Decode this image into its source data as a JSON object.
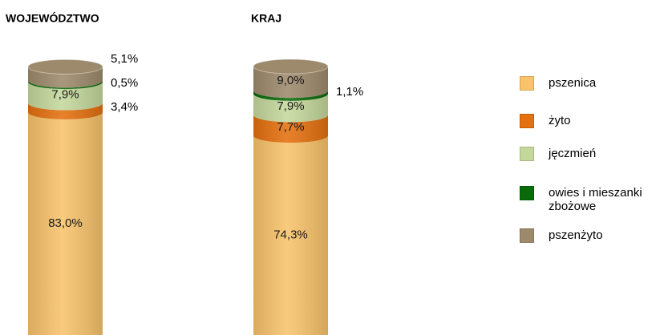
{
  "chart_data": {
    "type": "bar",
    "stacked": true,
    "categories": [
      "WOJEWÓDZTWO",
      "KRAJ"
    ],
    "series": [
      {
        "name": "pszenica",
        "color": "#f8c36b",
        "values": [
          83.0,
          74.3
        ],
        "value_labels": [
          "83,0%",
          "74,3%"
        ]
      },
      {
        "name": "żyto",
        "color": "#e4700f",
        "values": [
          3.4,
          7.7
        ],
        "value_labels": [
          "3,4%",
          "7,7%"
        ]
      },
      {
        "name": "jęczmień",
        "color": "#c4d89c",
        "values": [
          7.9,
          7.9
        ],
        "value_labels": [
          "7,9%",
          "7,9%"
        ]
      },
      {
        "name": "owies i mieszanki zbożowe",
        "color": "#0a6a0a",
        "values": [
          0.5,
          1.1
        ],
        "value_labels": [
          "0,5%",
          "1,1%"
        ]
      },
      {
        "name": "pszenżyto",
        "color": "#9d8a6c",
        "values": [
          5.1,
          9.0
        ],
        "value_labels": [
          "5,1%",
          "9,0%"
        ]
      }
    ],
    "legend": "right"
  }
}
